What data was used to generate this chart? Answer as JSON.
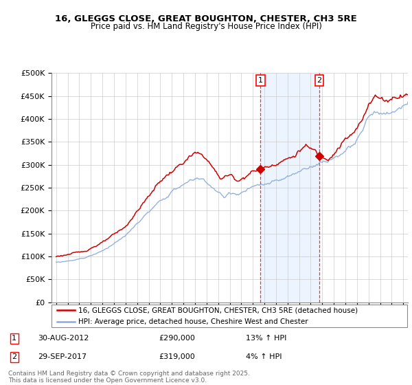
{
  "title1": "16, GLEGGS CLOSE, GREAT BOUGHTON, CHESTER, CH3 5RE",
  "title2": "Price paid vs. HM Land Registry's House Price Index (HPI)",
  "ylim": [
    0,
    500000
  ],
  "yticks": [
    0,
    50000,
    100000,
    150000,
    200000,
    250000,
    300000,
    350000,
    400000,
    450000,
    500000
  ],
  "ytick_labels": [
    "£0",
    "£50K",
    "£100K",
    "£150K",
    "£200K",
    "£250K",
    "£300K",
    "£350K",
    "£400K",
    "£450K",
    "£500K"
  ],
  "red_color": "#cc0000",
  "blue_color": "#88aadd",
  "marker1_date": 2012.67,
  "marker1_value": 290000,
  "marker2_date": 2017.75,
  "marker2_value": 319000,
  "annotation1": [
    "1",
    "30-AUG-2012",
    "£290,000",
    "13% ↑ HPI"
  ],
  "annotation2": [
    "2",
    "29-SEP-2017",
    "£319,000",
    "4% ↑ HPI"
  ],
  "legend1": "16, GLEGGS CLOSE, GREAT BOUGHTON, CHESTER, CH3 5RE (detached house)",
  "legend2": "HPI: Average price, detached house, Cheshire West and Chester",
  "footer": "Contains HM Land Registry data © Crown copyright and database right 2025.\nThis data is licensed under the Open Government Licence v3.0.",
  "bg_shade_start": 2012.67,
  "bg_shade_end": 2017.75,
  "xlim_start": 1994.6,
  "xlim_end": 2025.4
}
